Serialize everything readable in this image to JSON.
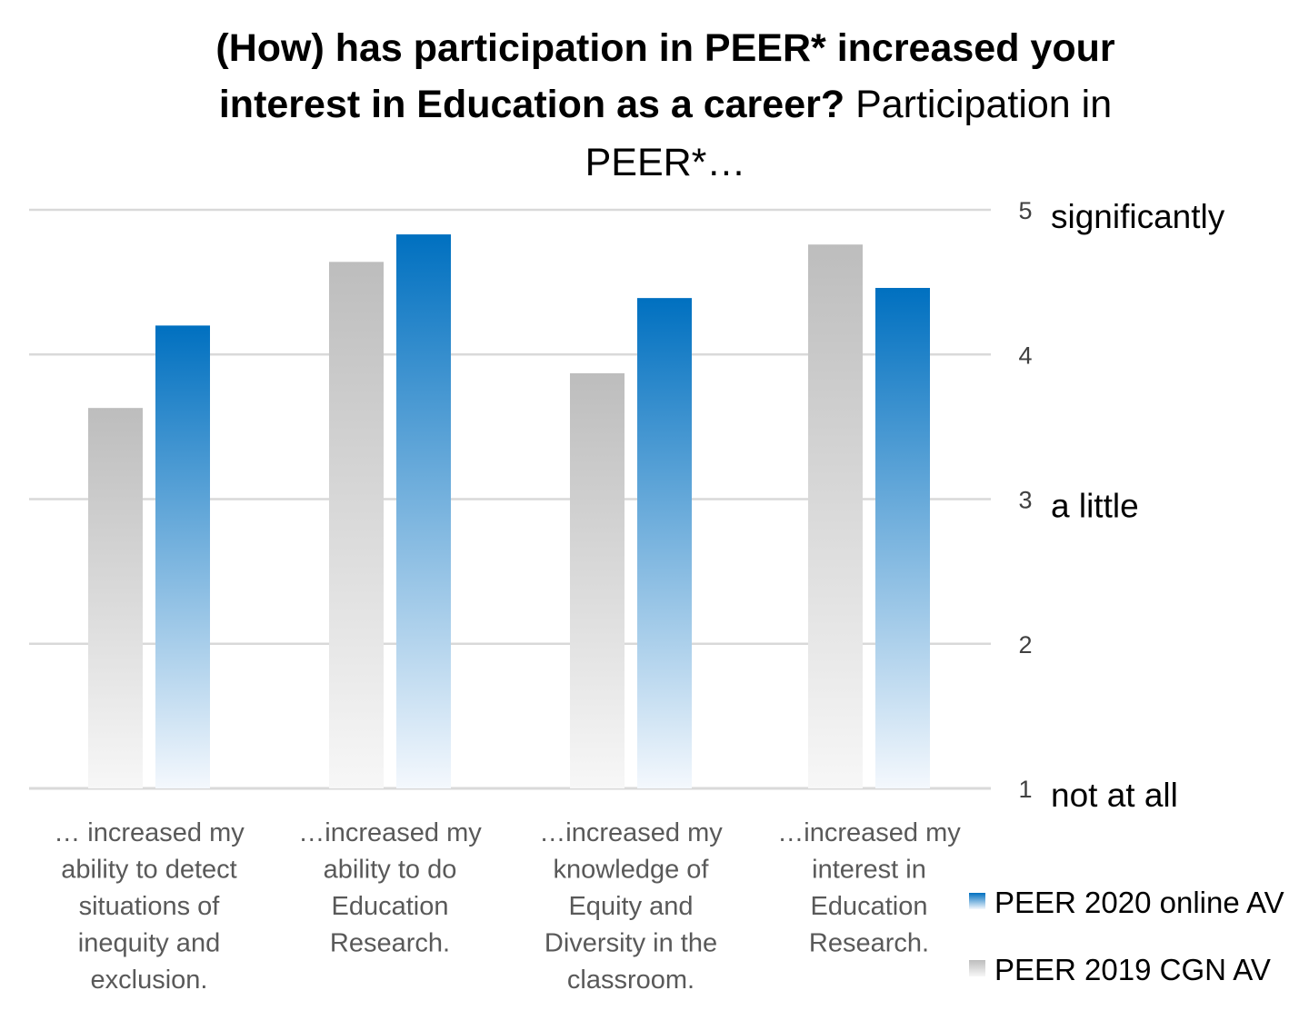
{
  "chart_data": {
    "type": "bar",
    "title_lines": [
      {
        "bold": "(How) has participation in PEER* increased your",
        "normal": ""
      },
      {
        "bold": "interest in Education as a career?",
        "normal": " Participation in"
      },
      {
        "bold": "",
        "normal": "PEER*…"
      }
    ],
    "categories": [
      [
        "… increased my",
        "ability to detect",
        "situations of",
        "inequity and",
        "exclusion."
      ],
      [
        "…increased my",
        "ability to do",
        "Education",
        "Research."
      ],
      [
        "…increased my",
        "knowledge of",
        "Equity and",
        "Diversity in the",
        "classroom."
      ],
      [
        "…increased my",
        "interest in",
        "Education",
        "Research."
      ]
    ],
    "series": [
      {
        "name": "PEER 2019 CGN AV",
        "values": [
          3.63,
          4.64,
          3.87,
          4.76
        ],
        "color_top": "#bdbdbd",
        "color_bottom": "#f7f7f7"
      },
      {
        "name": "PEER 2020 online AV",
        "values": [
          4.2,
          4.83,
          4.39,
          4.46
        ],
        "color_top": "#0070c0",
        "color_bottom": "#f4f8fd"
      }
    ],
    "y_ticks": [
      "1",
      "2",
      "3",
      "4",
      "5"
    ],
    "y_level_labels": [
      {
        "value": 5,
        "label": "significantly"
      },
      {
        "value": 3,
        "label": "a little"
      },
      {
        "value": 1,
        "label": "not at all"
      }
    ],
    "ylim": [
      1,
      5
    ],
    "grid": true,
    "gridline_color": "#d9d9d9",
    "legend_position": "right",
    "legend_order": [
      "PEER 2020 online AV",
      "PEER 2019 CGN AV"
    ]
  }
}
